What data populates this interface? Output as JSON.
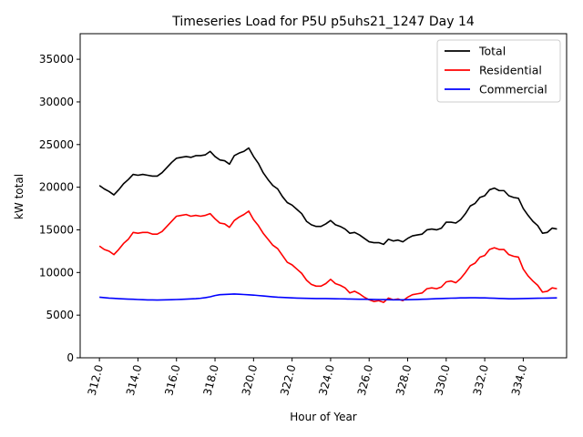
{
  "chart_data": {
    "type": "line",
    "title": "Timeseries Load for P5U p5uhs21_1247  Day 14",
    "xlabel": "Hour of Year",
    "ylabel": "kW total",
    "xlim": [
      311.0,
      336.25
    ],
    "ylim": [
      0,
      38000
    ],
    "xticks": [
      312,
      314,
      316,
      318,
      320,
      322,
      324,
      326,
      328,
      330,
      332,
      334
    ],
    "xtick_labels": [
      "312.0",
      "314.0",
      "316.0",
      "318.0",
      "320.0",
      "322.0",
      "324.0",
      "326.0",
      "328.0",
      "330.0",
      "332.0",
      "334.0"
    ],
    "yticks": [
      0,
      5000,
      10000,
      15000,
      20000,
      25000,
      30000,
      35000
    ],
    "ytick_labels": [
      "0",
      "5000",
      "10000",
      "15000",
      "20000",
      "25000",
      "30000",
      "35000"
    ],
    "grid": false,
    "legend_position": "top-right",
    "x": [
      312.0,
      312.25,
      312.5,
      312.75,
      313.0,
      313.25,
      313.5,
      313.75,
      314.0,
      314.25,
      314.5,
      314.75,
      315.0,
      315.25,
      315.5,
      315.75,
      316.0,
      316.25,
      316.5,
      316.75,
      317.0,
      317.25,
      317.5,
      317.75,
      318.0,
      318.25,
      318.5,
      318.75,
      319.0,
      319.25,
      319.5,
      319.75,
      320.0,
      320.25,
      320.5,
      320.75,
      321.0,
      321.25,
      321.5,
      321.75,
      322.0,
      322.25,
      322.5,
      322.75,
      323.0,
      323.25,
      323.5,
      323.75,
      324.0,
      324.25,
      324.5,
      324.75,
      325.0,
      325.25,
      325.5,
      325.75,
      326.0,
      326.25,
      326.5,
      326.75,
      327.0,
      327.25,
      327.5,
      327.75,
      328.0,
      328.25,
      328.5,
      328.75,
      329.0,
      329.25,
      329.5,
      329.75,
      330.0,
      330.25,
      330.5,
      330.75,
      331.0,
      331.25,
      331.5,
      331.75,
      332.0,
      332.25,
      332.5,
      332.75,
      333.0,
      333.25,
      333.5,
      333.75,
      334.0,
      334.25,
      334.5,
      334.75,
      335.0,
      335.25,
      335.5,
      335.75
    ],
    "series": [
      {
        "name": "Total",
        "color": "#000000",
        "values": [
          20200,
          19800,
          19500,
          19100,
          19700,
          20400,
          20900,
          21500,
          21400,
          21500,
          21400,
          21300,
          21300,
          21700,
          22300,
          22900,
          23400,
          23500,
          23600,
          23500,
          23700,
          23700,
          23800,
          24200,
          23600,
          23200,
          23100,
          22700,
          23700,
          24000,
          24200,
          24600,
          23600,
          22800,
          21700,
          20900,
          20200,
          19800,
          18900,
          18200,
          17900,
          17400,
          16900,
          16000,
          15600,
          15400,
          15400,
          15700,
          16100,
          15600,
          15400,
          15100,
          14600,
          14700,
          14400,
          14000,
          13600,
          13500,
          13500,
          13300,
          13900,
          13700,
          13800,
          13600,
          14000,
          14300,
          14400,
          14500,
          15000,
          15100,
          15000,
          15200,
          15900,
          15900,
          15800,
          16200,
          16900,
          17800,
          18100,
          18800,
          19000,
          19700,
          19900,
          19600,
          19600,
          19000,
          18800,
          18700,
          17500,
          16700,
          16000,
          15500,
          14600,
          14700,
          15200,
          15100
        ]
      },
      {
        "name": "Residential",
        "color": "#ff0000",
        "values": [
          13100,
          12700,
          12500,
          12100,
          12700,
          13400,
          13900,
          14700,
          14600,
          14700,
          14700,
          14500,
          14500,
          14800,
          15400,
          16000,
          16600,
          16700,
          16800,
          16600,
          16700,
          16600,
          16700,
          16900,
          16300,
          15800,
          15700,
          15300,
          16100,
          16500,
          16800,
          17200,
          16200,
          15500,
          14600,
          13900,
          13200,
          12800,
          12000,
          11200,
          10900,
          10400,
          9900,
          9100,
          8600,
          8400,
          8400,
          8700,
          9200,
          8700,
          8500,
          8200,
          7600,
          7800,
          7500,
          7100,
          6800,
          6600,
          6700,
          6500,
          7000,
          6800,
          6900,
          6700,
          7100,
          7400,
          7500,
          7600,
          8100,
          8200,
          8100,
          8300,
          8900,
          9000,
          8800,
          9300,
          10000,
          10800,
          11100,
          11800,
          12000,
          12700,
          12900,
          12700,
          12700,
          12100,
          11900,
          11800,
          10400,
          9600,
          9000,
          8500,
          7700,
          7800,
          8200,
          8100
        ]
      },
      {
        "name": "Commercial",
        "color": "#0000ff",
        "values": [
          7100,
          7050,
          7000,
          6970,
          6930,
          6900,
          6880,
          6860,
          6830,
          6810,
          6790,
          6780,
          6770,
          6780,
          6800,
          6810,
          6830,
          6850,
          6880,
          6900,
          6930,
          6980,
          7050,
          7150,
          7300,
          7400,
          7430,
          7450,
          7480,
          7450,
          7420,
          7380,
          7350,
          7300,
          7250,
          7200,
          7150,
          7100,
          7080,
          7050,
          7020,
          7000,
          6980,
          6970,
          6960,
          6950,
          6950,
          6940,
          6930,
          6920,
          6910,
          6900,
          6890,
          6880,
          6870,
          6860,
          6850,
          6840,
          6830,
          6820,
          6810,
          6800,
          6800,
          6800,
          6810,
          6820,
          6840,
          6860,
          6880,
          6900,
          6930,
          6950,
          6970,
          6990,
          7000,
          7020,
          7030,
          7040,
          7040,
          7030,
          7020,
          7000,
          6980,
          6960,
          6940,
          6920,
          6920,
          6930,
          6950,
          6960,
          6970,
          6980,
          6990,
          7000,
          7010,
          7020
        ]
      }
    ]
  }
}
